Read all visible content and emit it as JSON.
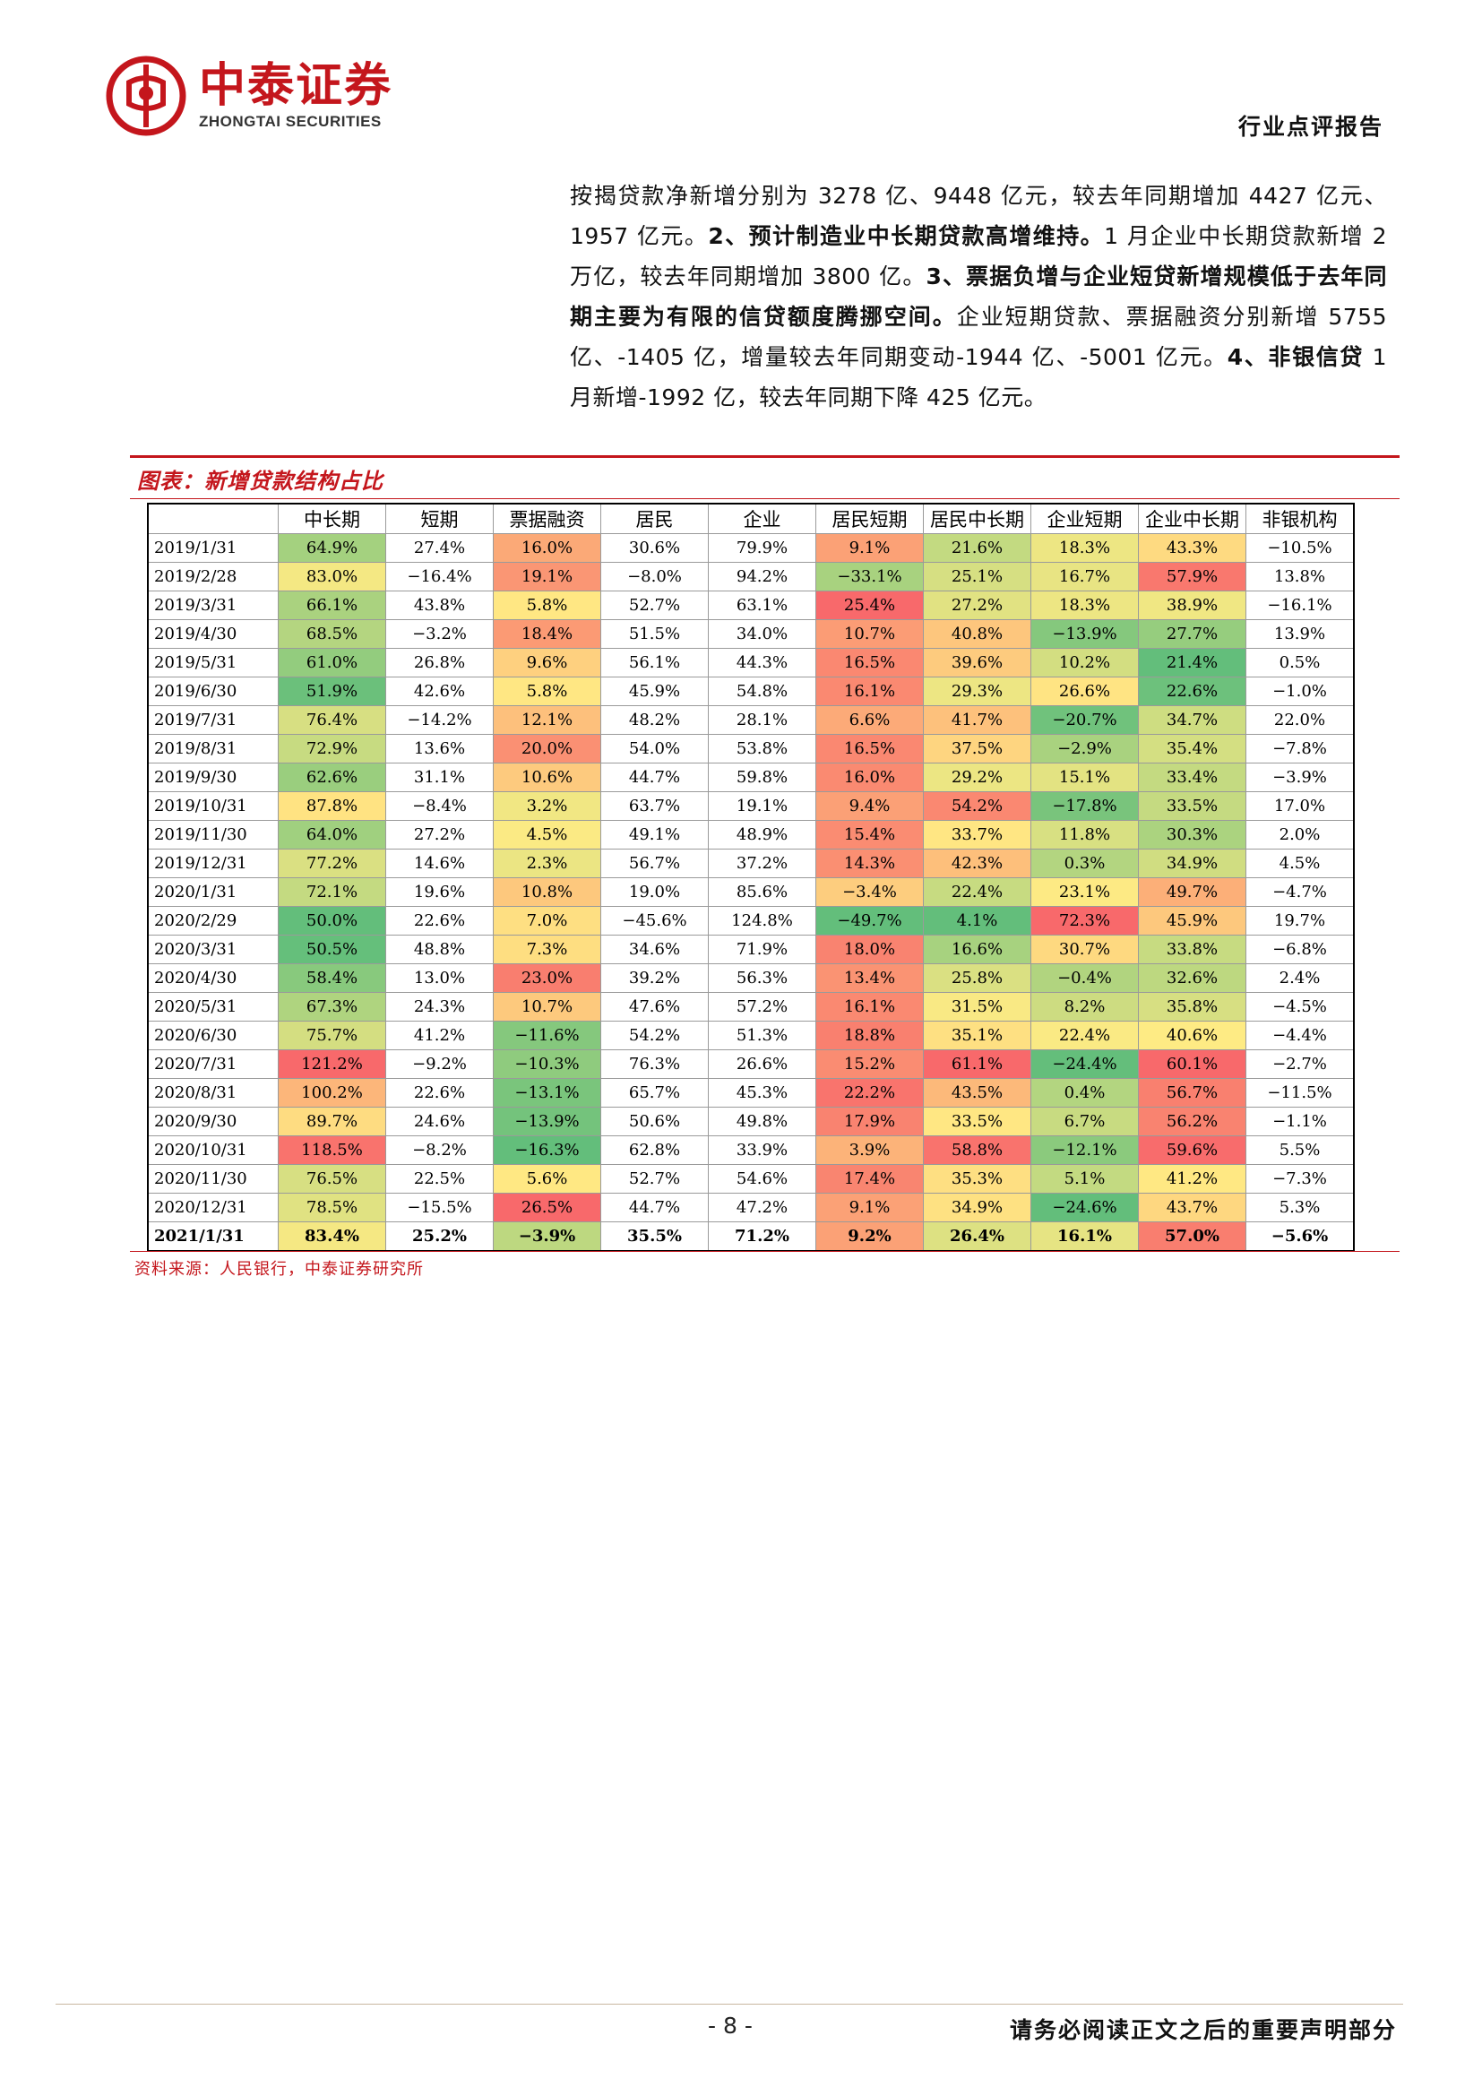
{
  "header": {
    "logo_cn": "中泰证券",
    "logo_en": "ZHONGTAI SECURITIES",
    "doc_type": "行业点评报告",
    "brand_color": "#c4161c"
  },
  "body": {
    "p1": "按揭贷款净新增分别为 3278 亿、9448 亿元，较去年同期增加 4427 亿元、1957 亿元。",
    "p2_bold": "2、预计制造业中长期贷款高增维持。",
    "p3": "1 月企业中长期贷款新增 2 万亿，较去年同期增加 3800 亿。",
    "p4_bold": "3、票据负增与企业短贷新增规模低于去年同期主要为有限的信贷额度腾挪空间。",
    "p5": "企业短期贷款、票据融资分别新增 5755 亿、-1405 亿，增量较去年同期变动-1944 亿、-5001 亿元。",
    "p6_bold": "4、非银信贷",
    "p7": " 1 月新增-1992 亿，较去年同期下降 425 亿元。"
  },
  "figure": {
    "title": "图表：新增贷款结构占比",
    "source": "资料来源：人民银行，中泰证券研究所"
  },
  "table": {
    "headers": [
      "",
      "中长期",
      "短期",
      "票据融资",
      "居民",
      "企业",
      "居民短期",
      "居民中长期",
      "企业短期",
      "企业中长期",
      "非银机构"
    ],
    "rows": [
      [
        "2019/1/31",
        "64.9%",
        "27.4%",
        "16.0%",
        "30.6%",
        "79.9%",
        "9.1%",
        "21.6%",
        "18.3%",
        "43.3%",
        "−10.5%"
      ],
      [
        "2019/2/28",
        "83.0%",
        "−16.4%",
        "19.1%",
        "−8.0%",
        "94.2%",
        "−33.1%",
        "25.1%",
        "16.7%",
        "57.9%",
        "13.8%"
      ],
      [
        "2019/3/31",
        "66.1%",
        "43.8%",
        "5.8%",
        "52.7%",
        "63.1%",
        "25.4%",
        "27.2%",
        "18.3%",
        "38.9%",
        "−16.1%"
      ],
      [
        "2019/4/30",
        "68.5%",
        "−3.2%",
        "18.4%",
        "51.5%",
        "34.0%",
        "10.7%",
        "40.8%",
        "−13.9%",
        "27.7%",
        "13.9%"
      ],
      [
        "2019/5/31",
        "61.0%",
        "26.8%",
        "9.6%",
        "56.1%",
        "44.3%",
        "16.5%",
        "39.6%",
        "10.2%",
        "21.4%",
        "0.5%"
      ],
      [
        "2019/6/30",
        "51.9%",
        "42.6%",
        "5.8%",
        "45.9%",
        "54.8%",
        "16.1%",
        "29.3%",
        "26.6%",
        "22.6%",
        "−1.0%"
      ],
      [
        "2019/7/31",
        "76.4%",
        "−14.2%",
        "12.1%",
        "48.2%",
        "28.1%",
        "6.6%",
        "41.7%",
        "−20.7%",
        "34.7%",
        "22.0%"
      ],
      [
        "2019/8/31",
        "72.9%",
        "13.6%",
        "20.0%",
        "54.0%",
        "53.8%",
        "16.5%",
        "37.5%",
        "−2.9%",
        "35.4%",
        "−7.8%"
      ],
      [
        "2019/9/30",
        "62.6%",
        "31.1%",
        "10.6%",
        "44.7%",
        "59.8%",
        "16.0%",
        "29.2%",
        "15.1%",
        "33.4%",
        "−3.9%"
      ],
      [
        "2019/10/31",
        "87.8%",
        "−8.4%",
        "3.2%",
        "63.7%",
        "19.1%",
        "9.4%",
        "54.2%",
        "−17.8%",
        "33.5%",
        "17.0%"
      ],
      [
        "2019/11/30",
        "64.0%",
        "27.2%",
        "4.5%",
        "49.1%",
        "48.9%",
        "15.4%",
        "33.7%",
        "11.8%",
        "30.3%",
        "2.0%"
      ],
      [
        "2019/12/31",
        "77.2%",
        "14.6%",
        "2.3%",
        "56.7%",
        "37.2%",
        "14.3%",
        "42.3%",
        "0.3%",
        "34.9%",
        "4.5%"
      ],
      [
        "2020/1/31",
        "72.1%",
        "19.6%",
        "10.8%",
        "19.0%",
        "85.6%",
        "−3.4%",
        "22.4%",
        "23.1%",
        "49.7%",
        "−4.7%"
      ],
      [
        "2020/2/29",
        "50.0%",
        "22.6%",
        "7.0%",
        "−45.6%",
        "124.8%",
        "−49.7%",
        "4.1%",
        "72.3%",
        "45.9%",
        "19.7%"
      ],
      [
        "2020/3/31",
        "50.5%",
        "48.8%",
        "7.3%",
        "34.6%",
        "71.9%",
        "18.0%",
        "16.6%",
        "30.7%",
        "33.8%",
        "−6.8%"
      ],
      [
        "2020/4/30",
        "58.4%",
        "13.0%",
        "23.0%",
        "39.2%",
        "56.3%",
        "13.4%",
        "25.8%",
        "−0.4%",
        "32.6%",
        "2.4%"
      ],
      [
        "2020/5/31",
        "67.3%",
        "24.3%",
        "10.7%",
        "47.6%",
        "57.2%",
        "16.1%",
        "31.5%",
        "8.2%",
        "35.8%",
        "−4.5%"
      ],
      [
        "2020/6/30",
        "75.7%",
        "41.2%",
        "−11.6%",
        "54.2%",
        "51.3%",
        "18.8%",
        "35.1%",
        "22.4%",
        "40.6%",
        "−4.4%"
      ],
      [
        "2020/7/31",
        "121.2%",
        "−9.2%",
        "−10.3%",
        "76.3%",
        "26.6%",
        "15.2%",
        "61.1%",
        "−24.4%",
        "60.1%",
        "−2.7%"
      ],
      [
        "2020/8/31",
        "100.2%",
        "22.6%",
        "−13.1%",
        "65.7%",
        "45.3%",
        "22.2%",
        "43.5%",
        "0.4%",
        "56.7%",
        "−11.5%"
      ],
      [
        "2020/9/30",
        "89.7%",
        "24.6%",
        "−13.9%",
        "50.6%",
        "49.8%",
        "17.9%",
        "33.5%",
        "6.7%",
        "56.2%",
        "−1.1%"
      ],
      [
        "2020/10/31",
        "118.5%",
        "−8.2%",
        "−16.3%",
        "62.8%",
        "33.9%",
        "3.9%",
        "58.8%",
        "−12.1%",
        "59.6%",
        "5.5%"
      ],
      [
        "2020/11/30",
        "76.5%",
        "22.5%",
        "5.6%",
        "52.7%",
        "54.6%",
        "17.4%",
        "35.3%",
        "5.1%",
        "41.2%",
        "−7.3%"
      ],
      [
        "2020/12/31",
        "78.5%",
        "−15.5%",
        "26.5%",
        "44.7%",
        "47.2%",
        "9.1%",
        "34.9%",
        "−24.6%",
        "43.7%",
        "5.3%"
      ],
      [
        "2021/1/31",
        "83.4%",
        "25.2%",
        "−3.9%",
        "35.5%",
        "71.2%",
        "9.2%",
        "26.4%",
        "16.1%",
        "57.0%",
        "−5.6%"
      ]
    ],
    "heat_columns": [
      1,
      3,
      6,
      7,
      8,
      9
    ]
  },
  "footer": {
    "page": "- 8 -",
    "disclaimer": "请务必阅读正文之后的重要声明部分"
  }
}
